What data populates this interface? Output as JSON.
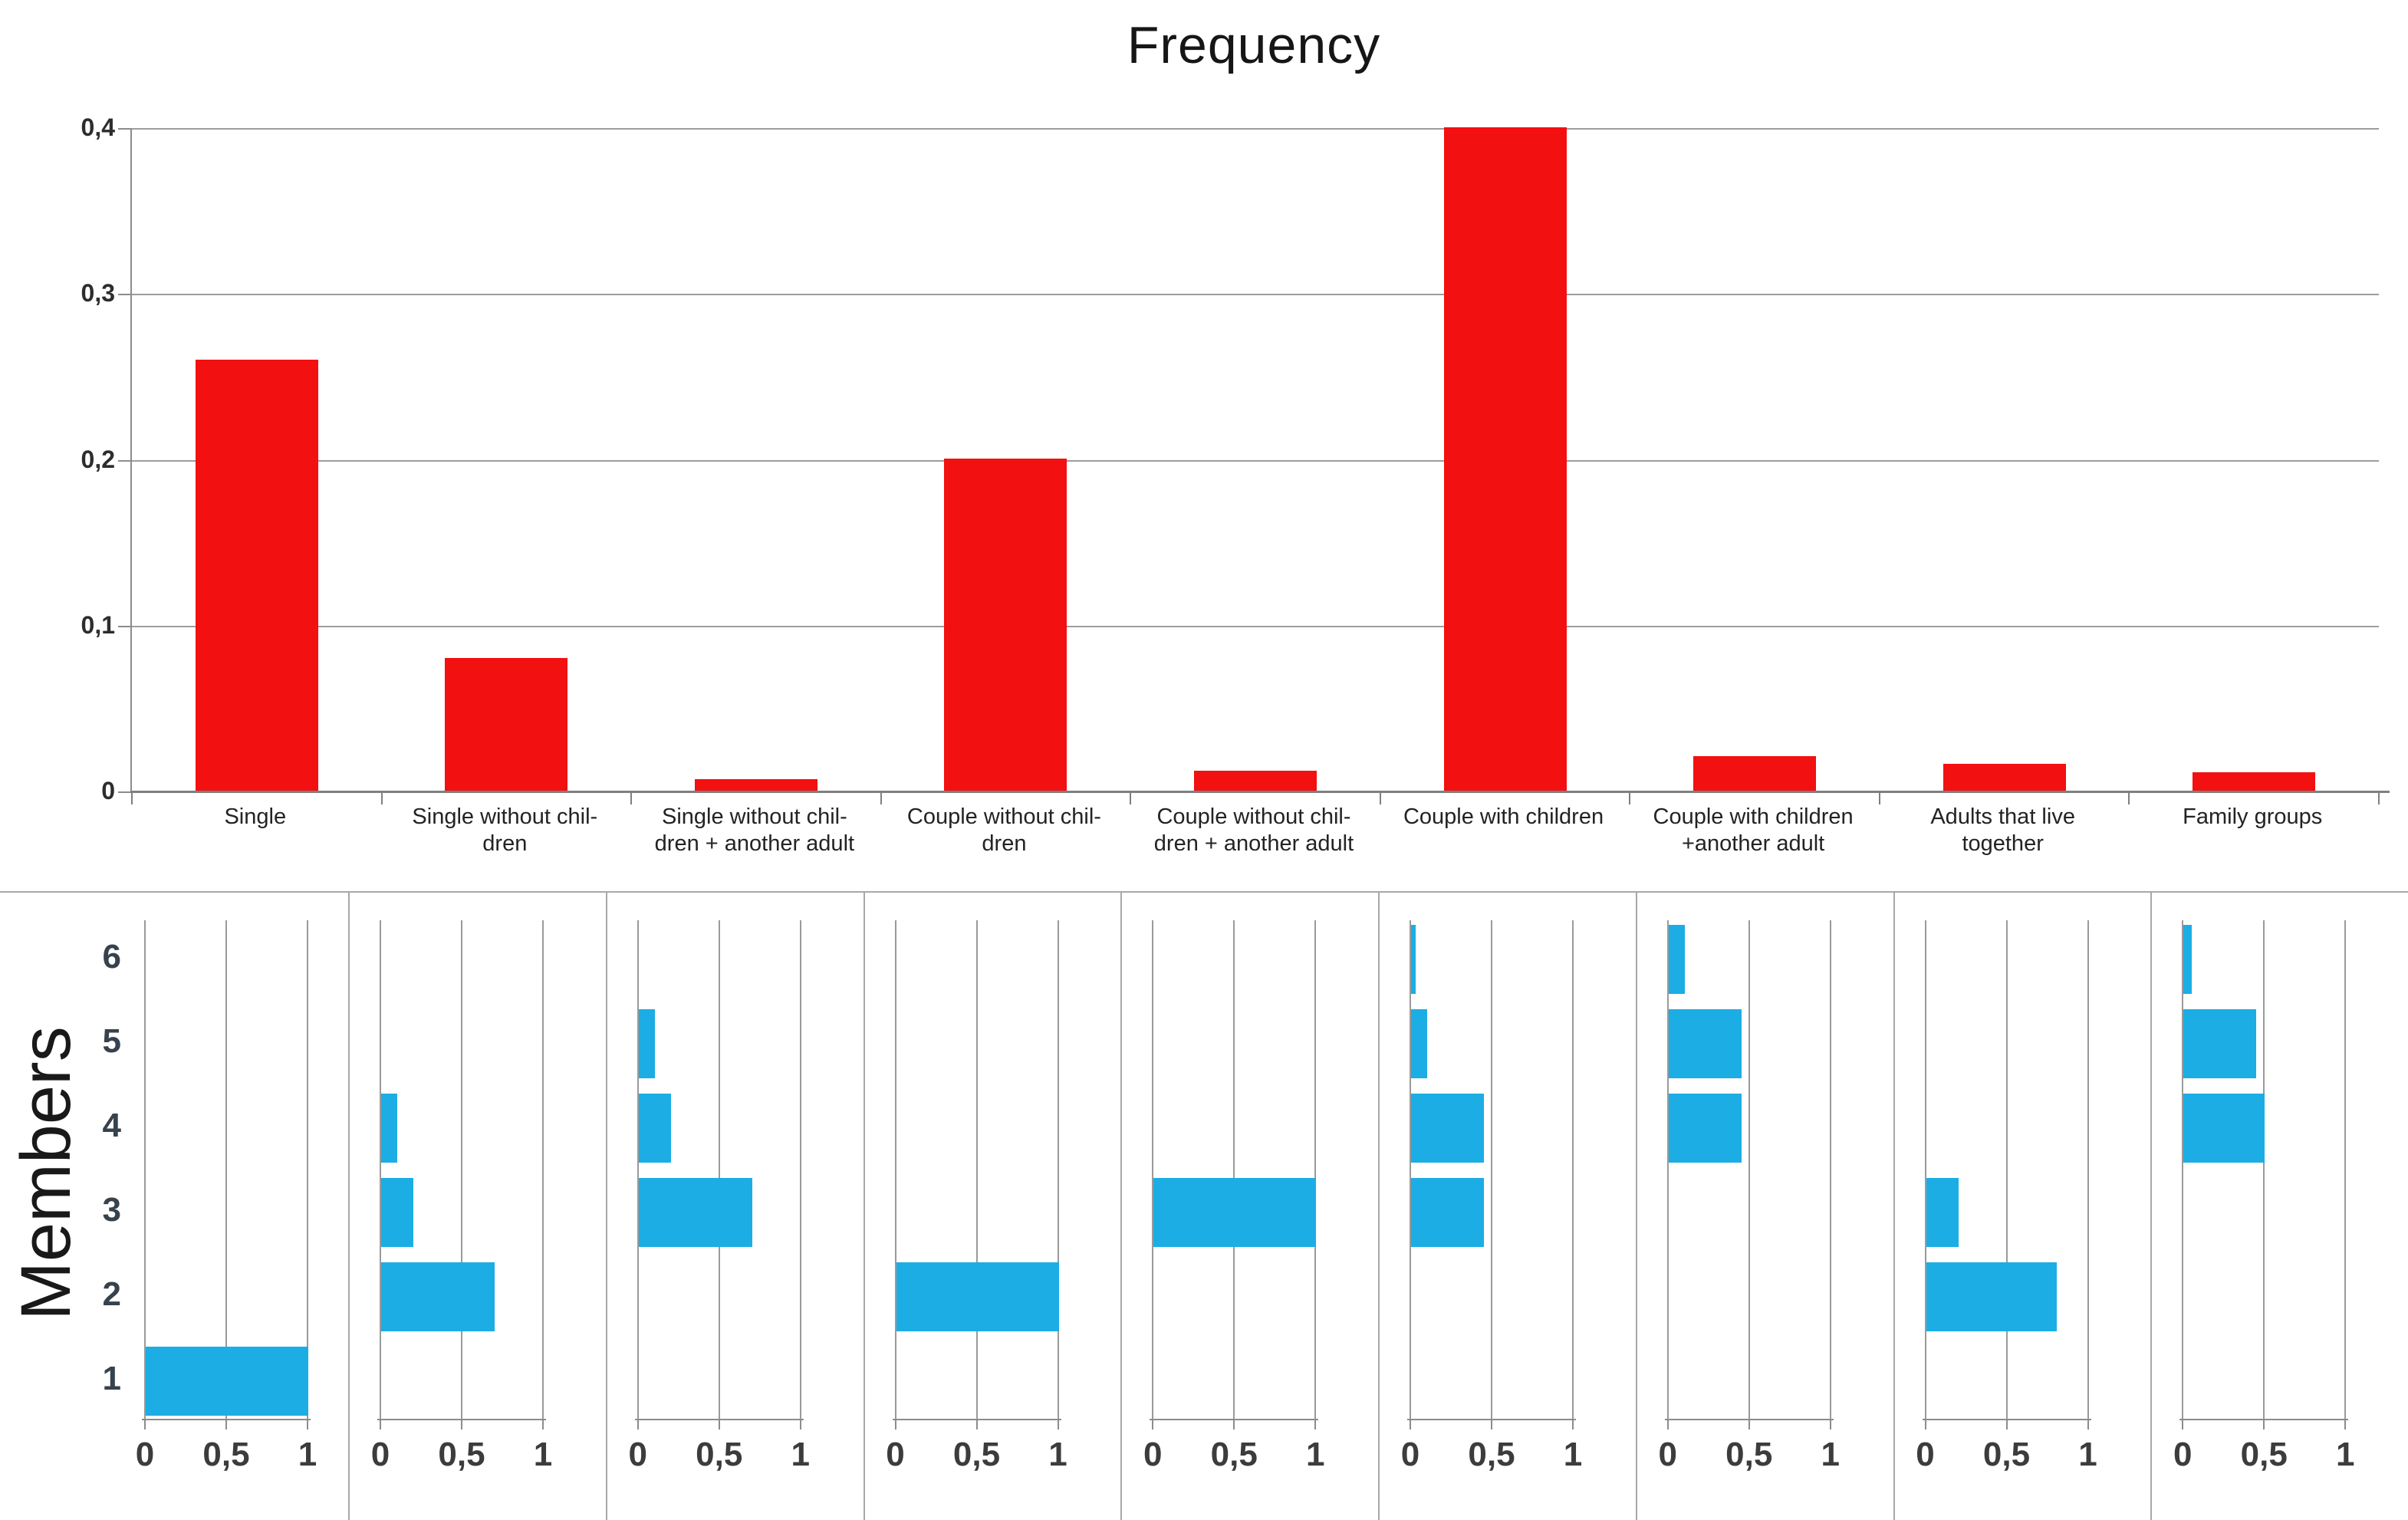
{
  "title": "Frequency",
  "colors": {
    "bar_red": "#f21010",
    "bar_blue": "#1cade4",
    "gridline": "#9d9d9d",
    "axis": "#8c8c8c",
    "text": "#232323",
    "member_label_text": "#37424f"
  },
  "chart_data": [
    {
      "type": "bar",
      "title": "Frequency",
      "categories": [
        "Single",
        "Single without chil-\ndren",
        "Single without chil-\ndren + another adult",
        "Couple without chil-\ndren",
        "Couple without chil-\ndren + another adult",
        "Couple with children",
        "Couple with children\n+another adult",
        "Adults that live\ntogether",
        "Family groups"
      ],
      "values": [
        0.26,
        0.08,
        0.007,
        0.2,
        0.012,
        0.4,
        0.021,
        0.016,
        0.011
      ],
      "xlabel": "",
      "ylabel": "",
      "ylim": [
        0,
        0.4
      ],
      "yticks": [
        "0,4",
        "0,3",
        "0,2",
        "0,1",
        "0"
      ],
      "ytick_values": [
        0.4,
        0.3,
        0.2,
        0.1,
        0
      ],
      "grid": true,
      "legend": false,
      "bar_color": "#f21010"
    },
    {
      "type": "bar-horizontal-small-multiples",
      "ylabel": "Members",
      "member_axis_ticks": [
        "6",
        "5",
        "4",
        "3",
        "2",
        "1"
      ],
      "members_range": [
        1,
        6
      ],
      "xticks": [
        "0",
        "0,5",
        "1"
      ],
      "xtick_values": [
        0,
        0.5,
        1
      ],
      "xlim": [
        0,
        1
      ],
      "grid": true,
      "bar_color": "#1cade4",
      "panels": [
        {
          "category": "Single",
          "bars": {
            "1": 1.0
          }
        },
        {
          "category": "Single without children",
          "bars": {
            "2": 0.7,
            "3": 0.2,
            "4": 0.1
          }
        },
        {
          "category": "Single without children + another adult",
          "bars": {
            "3": 0.7,
            "4": 0.2,
            "5": 0.1
          }
        },
        {
          "category": "Couple without children",
          "bars": {
            "2": 1.0
          }
        },
        {
          "category": "Couple without children + another adult",
          "bars": {
            "3": 1.0
          }
        },
        {
          "category": "Couple with children",
          "bars": {
            "3": 0.45,
            "4": 0.45,
            "5": 0.1,
            "6": 0.03
          }
        },
        {
          "category": "Couple with children + another adult",
          "bars": {
            "4": 0.45,
            "5": 0.45,
            "6": 0.1
          }
        },
        {
          "category": "Adults that live together",
          "bars": {
            "2": 0.8,
            "3": 0.2
          }
        },
        {
          "category": "Family groups",
          "bars": {
            "4": 0.5,
            "5": 0.45,
            "6": 0.05
          }
        }
      ]
    }
  ]
}
